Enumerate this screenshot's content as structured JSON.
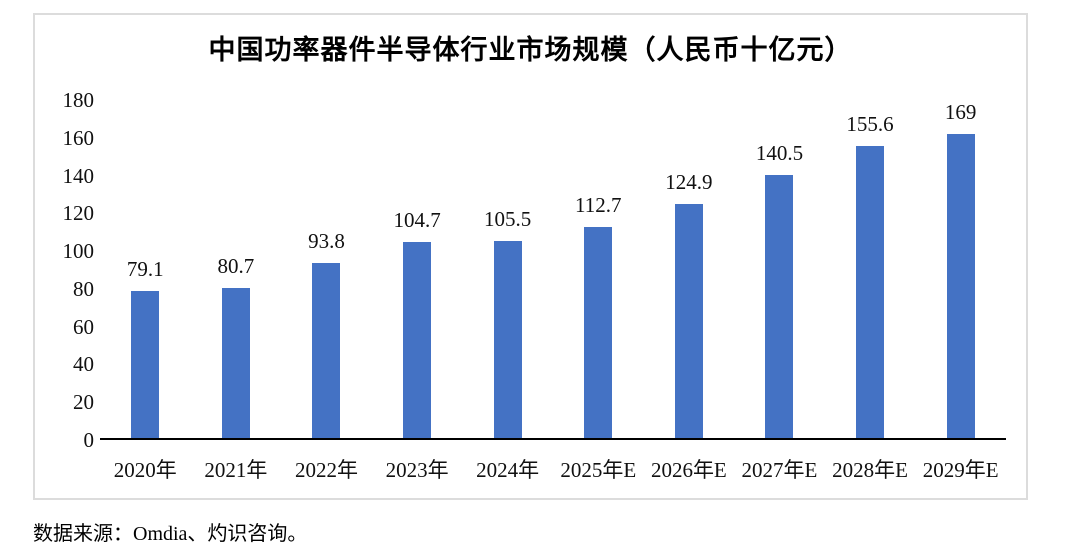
{
  "chart_data": {
    "type": "bar",
    "title": "中国功率器件半导体行业市场规模（人民币十亿元）",
    "categories": [
      "2020年",
      "2021年",
      "2022年",
      "2023年",
      "2024年",
      "2025年E",
      "2026年E",
      "2027年E",
      "2028年E",
      "2029年E"
    ],
    "values": [
      79.1,
      80.7,
      93.8,
      104.7,
      105.5,
      112.7,
      124.9,
      140.5,
      155.6,
      169
    ],
    "value_labels": [
      "79.1",
      "80.7",
      "93.8",
      "104.7",
      "105.5",
      "112.7",
      "124.9",
      "140.5",
      "155.6",
      "169"
    ],
    "ylim": [
      0,
      180
    ],
    "yticks": [
      0,
      20,
      40,
      60,
      80,
      100,
      120,
      140,
      160,
      180
    ],
    "grid": false,
    "legend": "none",
    "bar_color": "#4472C4",
    "axis_line_color": "#000000",
    "frame_border_color": "#dcdcdc"
  },
  "source_note": "数据来源：Omdia、灼识咨询。"
}
